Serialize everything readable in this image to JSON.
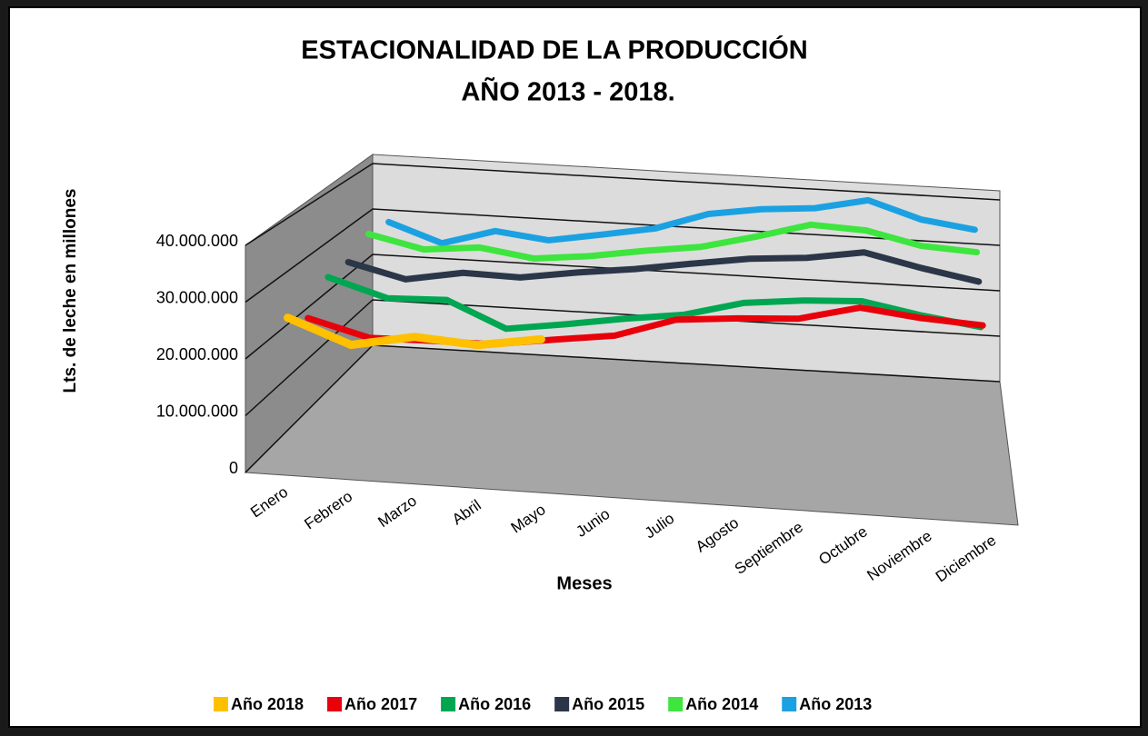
{
  "chart_data": {
    "type": "line3d",
    "title": "ESTACIONALIDAD DE LA PRODUCCIÓN",
    "subtitle": "AÑO 2013 - 2018.",
    "x_label": "Meses",
    "y_label": "Lts. de leche en millones",
    "categories": [
      "Enero",
      "Febrero",
      "Marzo",
      "Abril",
      "Mayo",
      "Junio",
      "Julio",
      "Agosto",
      "Septiembre",
      "Octubre",
      "Noviembre",
      "Diciembre"
    ],
    "ylim": [
      0,
      40000000
    ],
    "yticks": [
      0,
      {
        "value": 10000000,
        "label": "10.000.000"
      },
      {
        "value": 20000000,
        "label": "20.000.000"
      },
      {
        "value": 30000000,
        "label": "30.000.000"
      },
      {
        "value": 40000000,
        "label": "40.000.000"
      }
    ],
    "grid": true,
    "legend": "bottom",
    "series": [
      {
        "name": "Año 2018",
        "color": "#ffc000",
        "values": [
          26200000,
          22100000,
          24300000,
          23600000,
          25400000,
          null,
          null,
          null,
          null,
          null,
          null,
          null
        ]
      },
      {
        "name": "Año 2017",
        "color": "#e8000b",
        "values": [
          23100000,
          20200000,
          20400000,
          20500000,
          22100000,
          23600000,
          27300000,
          28300000,
          29000000,
          31800000,
          30600000,
          30000000
        ]
      },
      {
        "name": "Año 2016",
        "color": "#00a651",
        "values": [
          27700000,
          24400000,
          24800000,
          20000000,
          21600000,
          23400000,
          24900000,
          27900000,
          29100000,
          29700000,
          27700000,
          26200000
        ]
      },
      {
        "name": "Año 2015",
        "color": "#2b3648",
        "values": [
          27500000,
          24800000,
          26800000,
          26600000,
          28300000,
          29700000,
          31500000,
          33200000,
          34100000,
          35900000,
          33500000,
          31500000
        ]
      },
      {
        "name": "Año 2014",
        "color": "#3ee53e",
        "values": [
          30000000,
          27500000,
          28600000,
          27000000,
          28200000,
          30000000,
          31500000,
          34300000,
          37500000,
          37000000,
          34500000,
          33900000
        ]
      },
      {
        "name": "Año 2013",
        "color": "#1ba1e2",
        "values": [
          29200000,
          25300000,
          28600000,
          27300000,
          29200000,
          31200000,
          35000000,
          36700000,
          37600000,
          40000000,
          36500000,
          35000000
        ]
      }
    ]
  }
}
